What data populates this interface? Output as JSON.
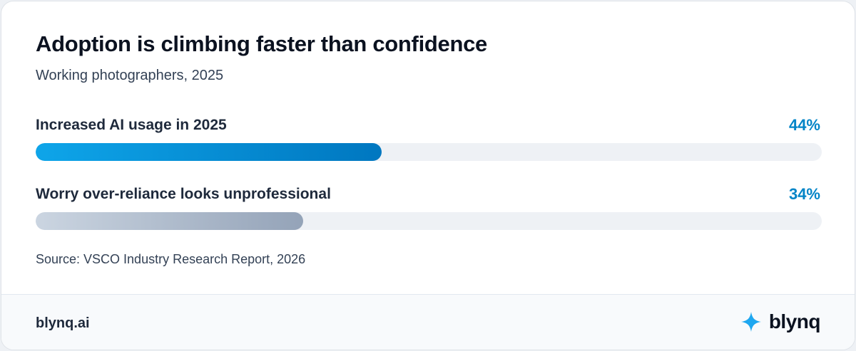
{
  "chart_data": {
    "type": "bar",
    "orientation": "horizontal",
    "title": "Adoption is climbing faster than confidence",
    "subtitle": "Working photographers, 2025",
    "categories": [
      "Increased AI usage in 2025",
      "Worry over-reliance looks unprofessional"
    ],
    "values": [
      44,
      34
    ],
    "value_labels": [
      "44%",
      "34%"
    ],
    "colors": [
      [
        "#0ea5e9",
        "#0077c0"
      ],
      [
        "#cbd5e1",
        "#94a3b8"
      ]
    ],
    "xlim": [
      0,
      100
    ],
    "source": "Source: VSCO Industry Research Report, 2026"
  },
  "footer": {
    "site": "blynq.ai",
    "brand": "blynq"
  }
}
